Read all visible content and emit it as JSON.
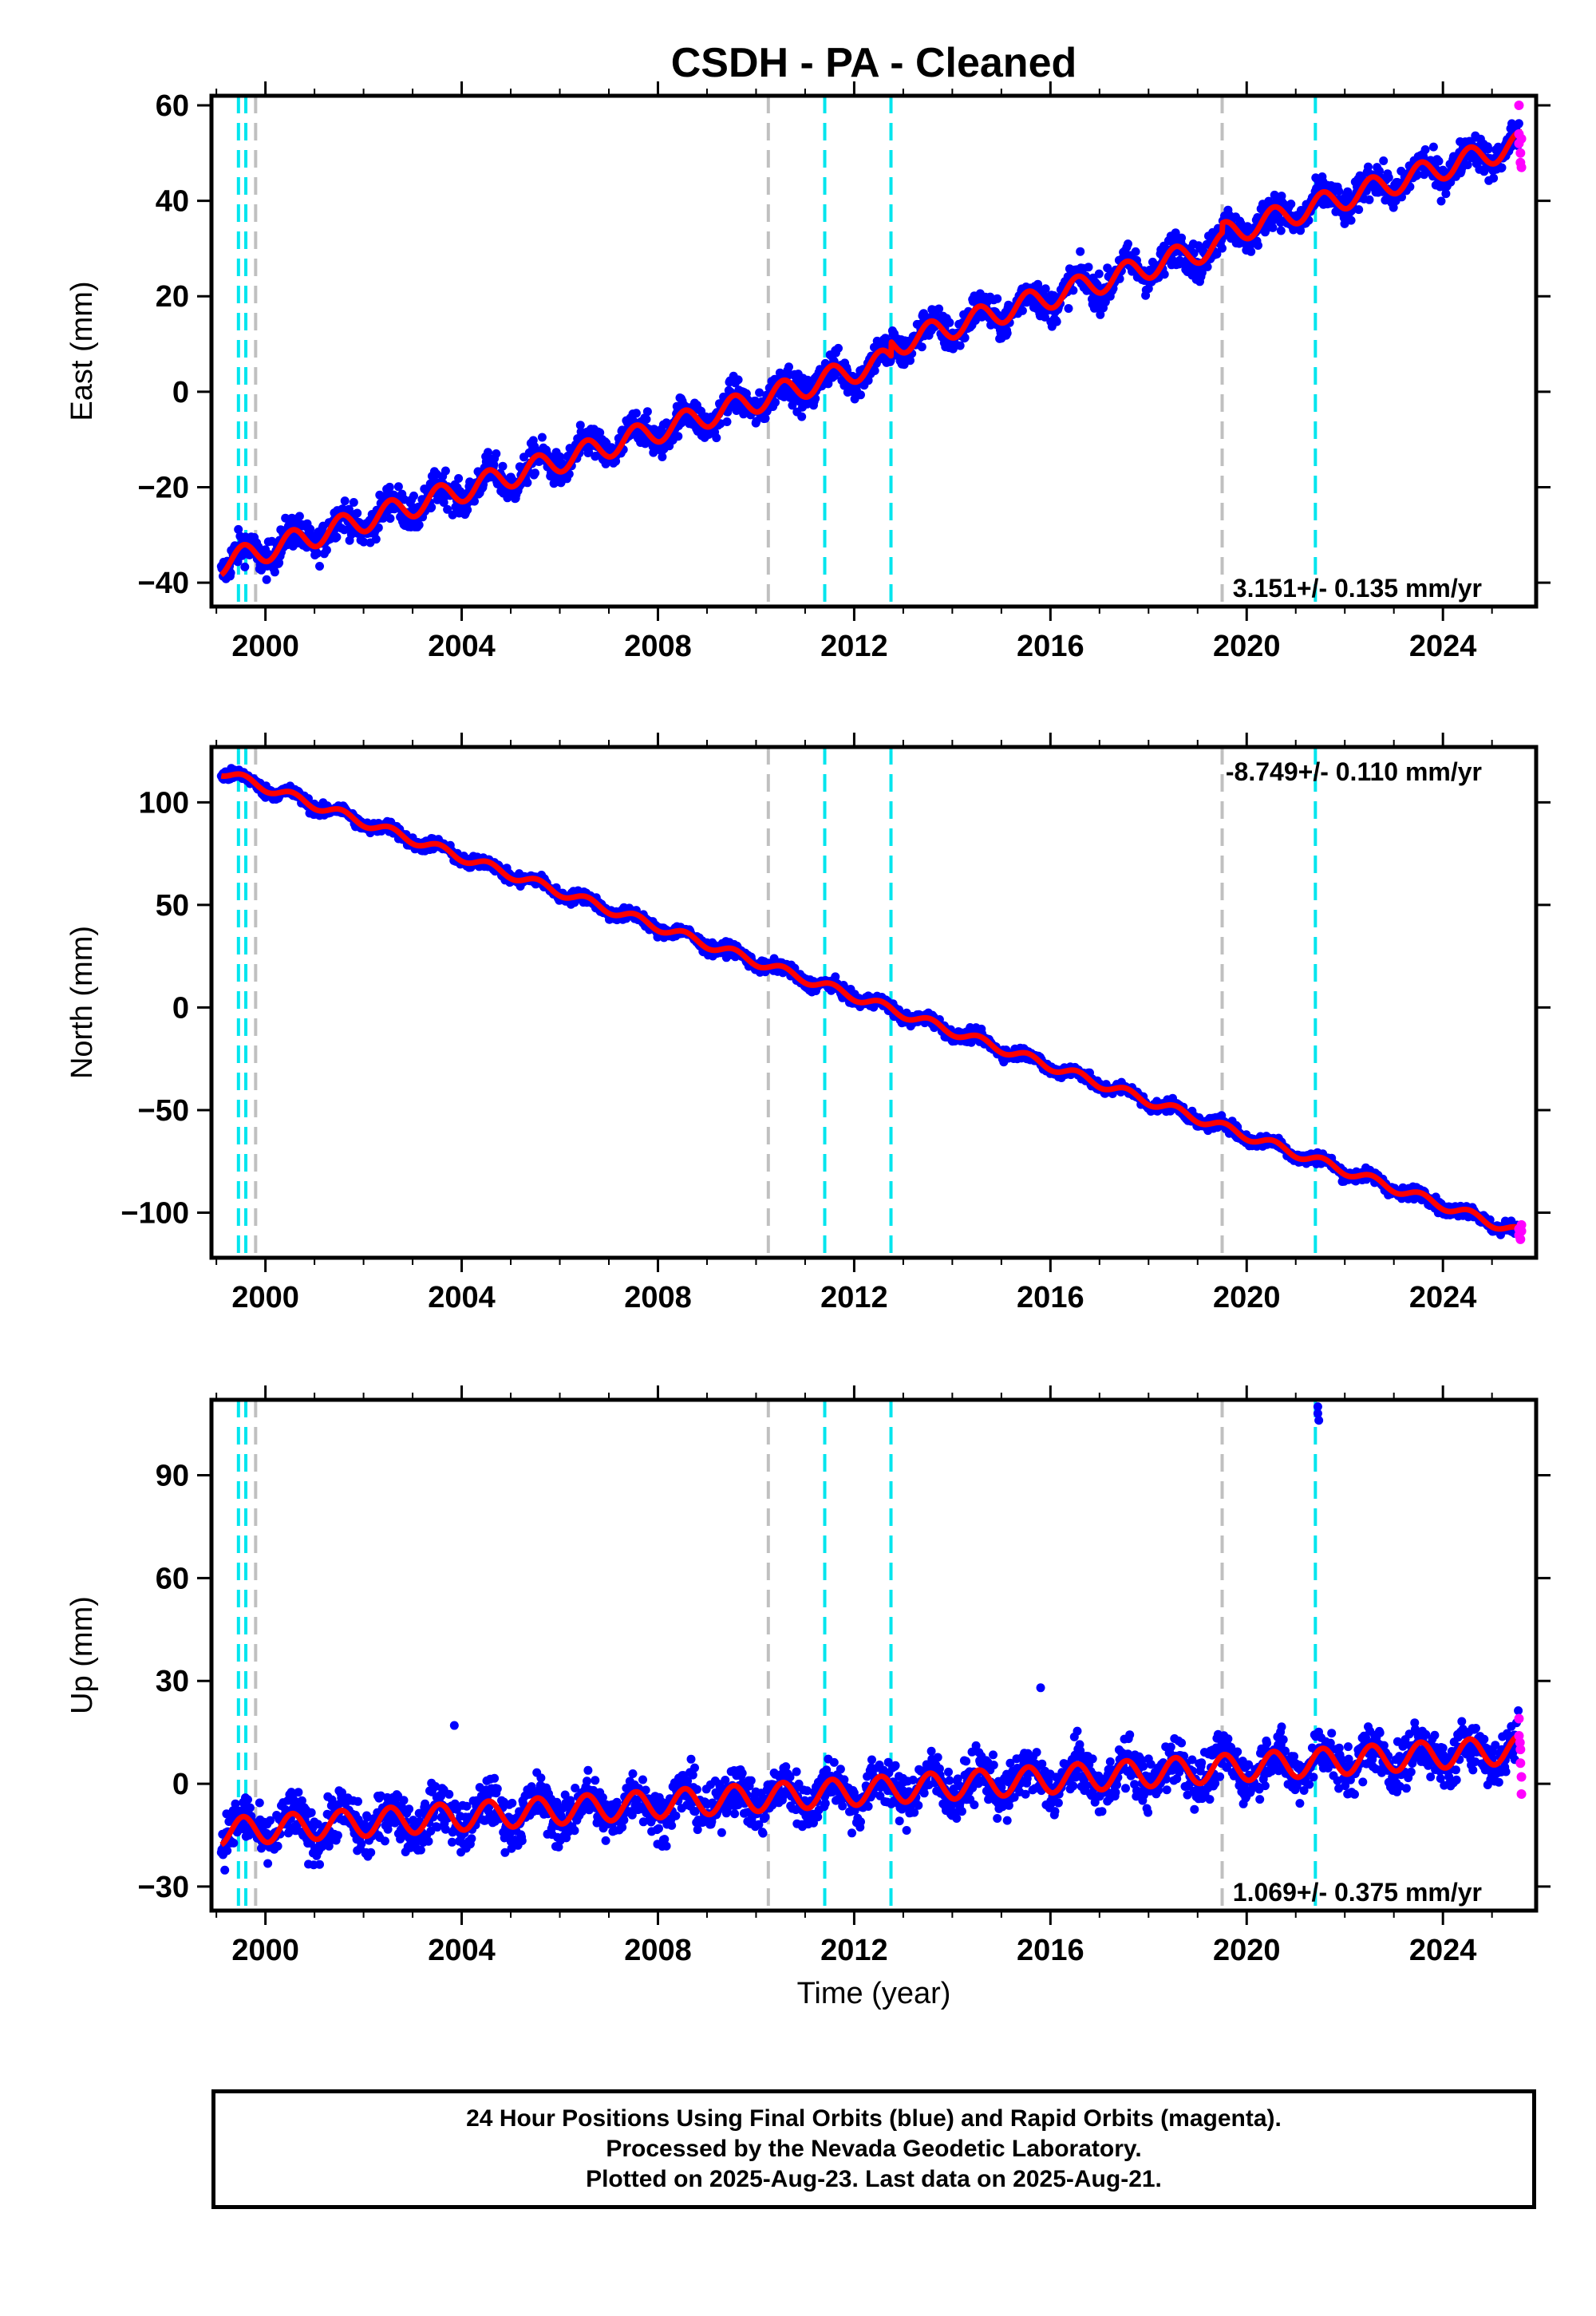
{
  "title": "CSDH  - PA - Cleaned",
  "xlabel": "Time (year)",
  "colors": {
    "final_orbits": "#0000ff",
    "rapid_orbits": "#ff00ff",
    "model": "#ff0000",
    "event_cyan": "#00e5ee",
    "event_gray": "#c0c0c0",
    "axis": "#000000"
  },
  "chart_data": [
    {
      "type": "scatter",
      "panel": "east",
      "ylabel": "East (mm)",
      "xlim": [
        1998.9,
        2025.9
      ],
      "ylim": [
        -45,
        62
      ],
      "xticks": [
        2000,
        2004,
        2008,
        2012,
        2016,
        2020,
        2024
      ],
      "xtick_labels": [
        "2000",
        "2004",
        "2008",
        "2012",
        "2016",
        "2020",
        "2024"
      ],
      "yticks": [
        -40,
        -20,
        0,
        20,
        40,
        60
      ],
      "ytick_labels": [
        "−40",
        "−20",
        "0",
        "20",
        "40",
        "60"
      ],
      "rate_label": "3.151+/- 0.135 mm/yr",
      "rate_position": "bottom-right",
      "trend": {
        "start_year": 1999.1,
        "end_year": 2025.6,
        "start_value": -36,
        "end_value": 47,
        "seasonal_amplitude": 2.5
      },
      "steps": [
        {
          "year": 2012.75,
          "offset": 3
        },
        {
          "year": 2019.5,
          "offset": 2
        }
      ],
      "scatter_spread": 3,
      "rapid_points": [
        [
          2025.55,
          60
        ],
        [
          2025.55,
          54
        ],
        [
          2025.55,
          52
        ],
        [
          2025.58,
          50
        ],
        [
          2025.58,
          48
        ],
        [
          2025.6,
          53
        ],
        [
          2025.6,
          47
        ]
      ]
    },
    {
      "type": "scatter",
      "panel": "north",
      "ylabel": "North (mm)",
      "xlim": [
        1998.9,
        2025.9
      ],
      "ylim": [
        -122,
        127
      ],
      "xticks": [
        2000,
        2004,
        2008,
        2012,
        2016,
        2020,
        2024
      ],
      "xtick_labels": [
        "2000",
        "2004",
        "2008",
        "2012",
        "2016",
        "2020",
        "2024"
      ],
      "yticks": [
        -100,
        -50,
        0,
        50,
        100
      ],
      "ytick_labels": [
        "−100",
        "−50",
        "0",
        "50",
        "100"
      ],
      "rate_label": "-8.749+/- 0.110 mm/yr",
      "rate_position": "top-right",
      "trend": {
        "start_year": 1999.1,
        "end_year": 2025.6,
        "start_value": 115,
        "end_value": -110,
        "seasonal_amplitude": 2.2
      },
      "steps": [],
      "scatter_spread": 2.5,
      "rapid_points": [
        [
          2025.55,
          -108
        ],
        [
          2025.55,
          -111
        ],
        [
          2025.58,
          -113
        ],
        [
          2025.6,
          -109
        ],
        [
          2025.6,
          -106
        ]
      ]
    },
    {
      "type": "scatter",
      "panel": "up",
      "ylabel": "Up (mm)",
      "xlim": [
        1998.9,
        2025.9
      ],
      "ylim": [
        -37,
        112
      ],
      "xticks": [
        2000,
        2004,
        2008,
        2012,
        2016,
        2020,
        2024
      ],
      "xtick_labels": [
        "2000",
        "2004",
        "2008",
        "2012",
        "2016",
        "2020",
        "2024"
      ],
      "yticks": [
        -30,
        0,
        30,
        60,
        90
      ],
      "ytick_labels": [
        "−30",
        "0",
        "30",
        "60",
        "90"
      ],
      "rate_label": "1.069+/- 0.375 mm/yr",
      "rate_position": "bottom-right",
      "trend": {
        "start_year": 1999.1,
        "end_year": 2025.6,
        "start_value": -14,
        "end_value": 10,
        "seasonal_amplitude": 4
      },
      "steps": [],
      "scatter_spread": 6,
      "outliers": [
        [
          2021.45,
          110
        ],
        [
          2021.45,
          108
        ],
        [
          2021.47,
          106
        ],
        [
          2003.85,
          17
        ],
        [
          2015.8,
          28
        ]
      ],
      "rapid_points": [
        [
          2025.55,
          19
        ],
        [
          2025.55,
          14
        ],
        [
          2025.58,
          10
        ],
        [
          2025.58,
          6
        ],
        [
          2025.6,
          2
        ],
        [
          2025.6,
          -3
        ],
        [
          2025.57,
          12
        ]
      ]
    }
  ],
  "event_lines": [
    {
      "year": 1999.45,
      "color": "cyan"
    },
    {
      "year": 1999.6,
      "color": "cyan"
    },
    {
      "year": 1999.8,
      "color": "gray"
    },
    {
      "year": 2010.25,
      "color": "gray"
    },
    {
      "year": 2011.4,
      "color": "cyan"
    },
    {
      "year": 2012.75,
      "color": "cyan"
    },
    {
      "year": 2019.5,
      "color": "gray"
    },
    {
      "year": 2021.4,
      "color": "cyan"
    }
  ],
  "footer": {
    "line1": "24 Hour Positions Using Final Orbits (blue) and Rapid Orbits (magenta).",
    "line2": "Processed by the Nevada Geodetic Laboratory.",
    "line3": "Plotted on 2025-Aug-23. Last data on 2025-Aug-21."
  }
}
